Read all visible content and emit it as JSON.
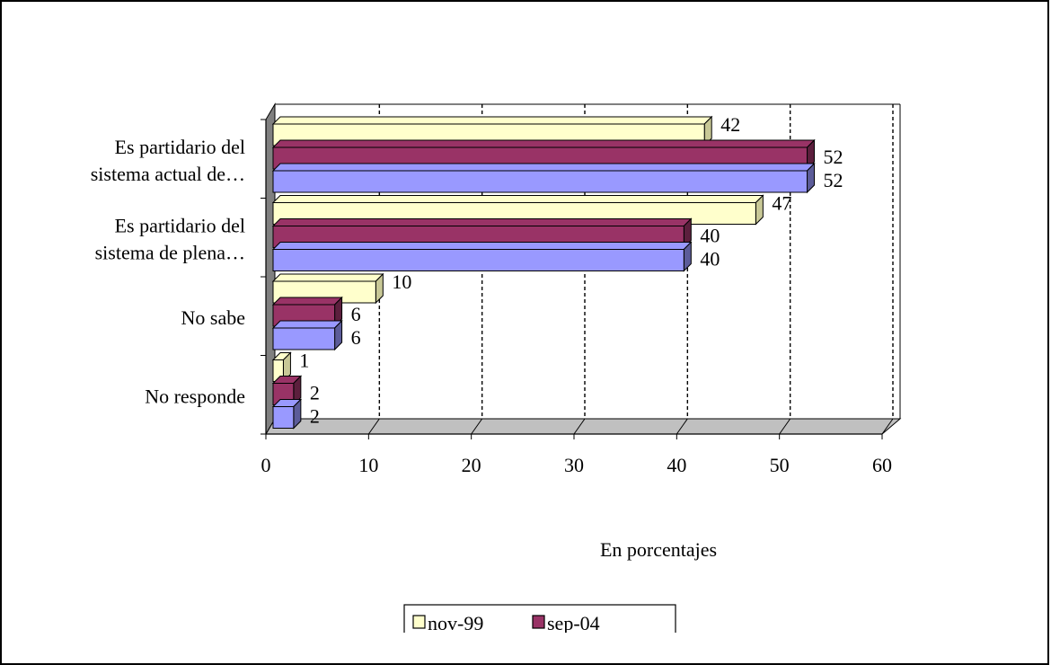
{
  "chart_data": {
    "type": "bar",
    "orientation": "horizontal",
    "categories": [
      [
        "Es partidario del",
        "sistema actual de…"
      ],
      [
        "Es partidario del",
        "sistema de plena…"
      ],
      [
        "No sabe"
      ],
      [
        "No responde"
      ]
    ],
    "series": [
      {
        "name": "nov-99",
        "color": "#FFFFCC",
        "side_color": "#C8C896",
        "values": [
          42,
          47,
          10,
          1
        ]
      },
      {
        "name": "sep-04",
        "color": "#993366",
        "side_color": "#5C1F3D",
        "values": [
          52,
          40,
          6,
          2
        ]
      },
      {
        "name": "",
        "color": "#9999FF",
        "side_color": "#5C5C99",
        "values": [
          52,
          40,
          6,
          2
        ]
      }
    ],
    "x_ticks": [
      "0",
      "10",
      "20",
      "30",
      "40",
      "50",
      "60"
    ],
    "xlim": [
      0,
      60
    ],
    "xlabel": "En porcentajes",
    "grid": "vertical dashed",
    "legend_position": "bottom",
    "style": "3d"
  }
}
